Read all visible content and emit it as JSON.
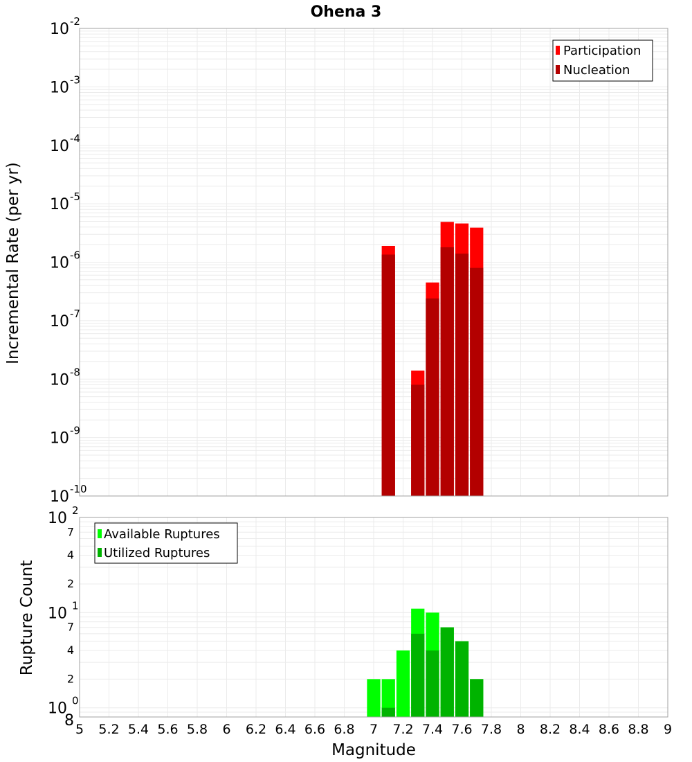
{
  "chart_data": [
    {
      "type": "bar",
      "title": "Ohena 3",
      "xlabel": "Magnitude",
      "ylabel": "Incremental Rate (per yr)",
      "y_scale": "log",
      "xlim": [
        5,
        9
      ],
      "ylim": [
        1e-10,
        0.01
      ],
      "x_ticks": [
        "5",
        "5.2",
        "5.4",
        "5.6",
        "5.8",
        "6",
        "6.2",
        "6.4",
        "6.6",
        "6.8",
        "7",
        "7.2",
        "7.4",
        "7.6",
        "7.8",
        "8",
        "8.2",
        "8.4",
        "8.6",
        "8.8",
        "9"
      ],
      "y_ticks": [
        {
          "base": "10",
          "exp": "-10",
          "value": 1e-10
        },
        {
          "base": "10",
          "exp": "-9",
          "value": 1e-09
        },
        {
          "base": "10",
          "exp": "-8",
          "value": 1e-08
        },
        {
          "base": "10",
          "exp": "-7",
          "value": 1e-07
        },
        {
          "base": "10",
          "exp": "-6",
          "value": 1e-06
        },
        {
          "base": "10",
          "exp": "-5",
          "value": 1e-05
        },
        {
          "base": "10",
          "exp": "-4",
          "value": 0.0001
        },
        {
          "base": "10",
          "exp": "-3",
          "value": 0.001
        },
        {
          "base": "10",
          "exp": "-2",
          "value": 0.01
        }
      ],
      "grid": true,
      "legend_position": "top-right",
      "series": [
        {
          "name": "Participation",
          "color": "#ff0000",
          "x": [
            7.1,
            7.3,
            7.4,
            7.5,
            7.6,
            7.7
          ],
          "values": [
            1.9e-06,
            1.4e-08,
            4.5e-07,
            4.9e-06,
            4.6e-06,
            3.9e-06
          ]
        },
        {
          "name": "Nucleation",
          "color": "#b30000",
          "x": [
            7.1,
            7.3,
            7.4,
            7.5,
            7.6,
            7.7
          ],
          "values": [
            1.35e-06,
            8e-09,
            2.4e-07,
            1.8e-06,
            1.4e-06,
            8e-07
          ]
        }
      ]
    },
    {
      "type": "bar",
      "xlabel": "Magnitude",
      "ylabel": "Rupture Count",
      "y_scale": "log",
      "xlim": [
        5,
        9
      ],
      "ylim": [
        0.8,
        100
      ],
      "x_ticks": [
        "5",
        "5.2",
        "5.4",
        "5.6",
        "5.8",
        "6",
        "6.2",
        "6.4",
        "6.6",
        "6.8",
        "7",
        "7.2",
        "7.4",
        "7.6",
        "7.8",
        "8",
        "8.2",
        "8.4",
        "8.6",
        "8.8",
        "9"
      ],
      "y_major_ticks": [
        {
          "base": "10",
          "exp": "0",
          "value": 1
        },
        {
          "base": "10",
          "exp": "1",
          "value": 10
        },
        {
          "base": "10",
          "exp": "2",
          "value": 100
        }
      ],
      "y_minor_ticks": [
        {
          "label": "8",
          "value": 0.8
        },
        {
          "label": "2",
          "value": 2
        },
        {
          "label": "4",
          "value": 4
        },
        {
          "label": "7",
          "value": 7
        },
        {
          "label": "2",
          "value": 20
        },
        {
          "label": "4",
          "value": 40
        },
        {
          "label": "7",
          "value": 70
        }
      ],
      "grid": true,
      "legend_position": "top-left",
      "series": [
        {
          "name": "Available Ruptures",
          "color": "#00ff00",
          "x": [
            7.0,
            7.1,
            7.2,
            7.3,
            7.4,
            7.5,
            7.6,
            7.7
          ],
          "values": [
            2,
            2,
            4,
            11,
            10,
            7,
            5,
            2
          ]
        },
        {
          "name": "Utilized Ruptures",
          "color": "#00b300",
          "x": [
            7.0,
            7.1,
            7.2,
            7.3,
            7.4,
            7.5,
            7.6,
            7.7
          ],
          "values": [
            0,
            1,
            0,
            6,
            4,
            7,
            5,
            2
          ]
        }
      ]
    }
  ]
}
